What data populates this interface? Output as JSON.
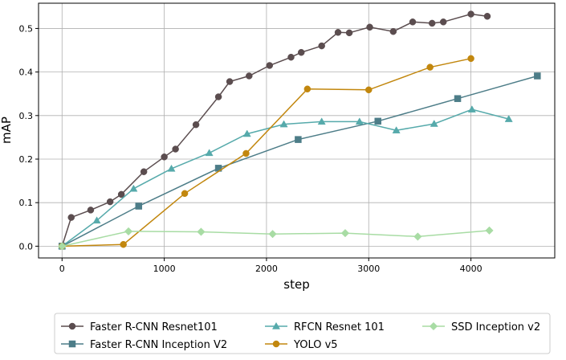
{
  "chart_data": {
    "type": "line",
    "xlabel": "step",
    "ylabel": "mAP",
    "xlim": [
      -230,
      4820
    ],
    "ylim": [
      -0.027,
      0.558
    ],
    "xticks": [
      0,
      1000,
      2000,
      3000,
      4000
    ],
    "yticks": [
      0.0,
      0.1,
      0.2,
      0.3,
      0.4,
      0.5
    ],
    "xtick_labels": [
      "0",
      "1000",
      "2000",
      "3000",
      "4000"
    ],
    "ytick_labels": [
      "0.0",
      "0.1",
      "0.2",
      "0.3",
      "0.4",
      "0.5"
    ],
    "grid": true,
    "legend_position": "below",
    "series": [
      {
        "name": "Faster R-CNN Resnet101",
        "color": "#5b4d4f",
        "marker": "circle",
        "x": [
          0,
          90,
          280,
          470,
          580,
          800,
          1000,
          1110,
          1310,
          1530,
          1640,
          1830,
          2030,
          2240,
          2340,
          2540,
          2700,
          2810,
          3010,
          3240,
          3430,
          3620,
          3730,
          4000,
          4160
        ],
        "y": [
          0.0,
          0.066,
          0.083,
          0.102,
          0.119,
          0.171,
          0.205,
          0.223,
          0.279,
          0.343,
          0.378,
          0.391,
          0.415,
          0.434,
          0.445,
          0.46,
          0.491,
          0.49,
          0.503,
          0.493,
          0.515,
          0.512,
          0.515,
          0.533,
          0.528
        ]
      },
      {
        "name": "Faster R-CNN Inception V2",
        "color": "#4d7d88",
        "marker": "square",
        "x": [
          0,
          750,
          1530,
          2310,
          3090,
          3870,
          4650
        ],
        "y": [
          0.0,
          0.092,
          0.179,
          0.245,
          0.287,
          0.339,
          0.391
        ]
      },
      {
        "name": "RFCN Resnet 101",
        "color": "#56aaab",
        "marker": "triangle",
        "x": [
          0,
          340,
          700,
          1070,
          1440,
          1810,
          2170,
          2540,
          2910,
          3270,
          3640,
          4010,
          4370
        ],
        "y": [
          0.0,
          0.059,
          0.132,
          0.178,
          0.214,
          0.258,
          0.28,
          0.286,
          0.286,
          0.266,
          0.281,
          0.314,
          0.292
        ]
      },
      {
        "name": "YOLO v5",
        "color": "#c2870e",
        "marker": "circle",
        "x": [
          0,
          600,
          1200,
          1800,
          2400,
          3000,
          3600,
          4000
        ],
        "y": [
          0.0,
          0.004,
          0.121,
          0.213,
          0.361,
          0.359,
          0.411,
          0.431
        ]
      },
      {
        "name": "SSD Inception v2",
        "color": "#a8dca4",
        "marker": "diamond",
        "x": [
          0,
          650,
          1360,
          2060,
          2770,
          3480,
          4180
        ],
        "y": [
          0.0,
          0.034,
          0.033,
          0.028,
          0.03,
          0.022,
          0.036
        ]
      }
    ]
  }
}
